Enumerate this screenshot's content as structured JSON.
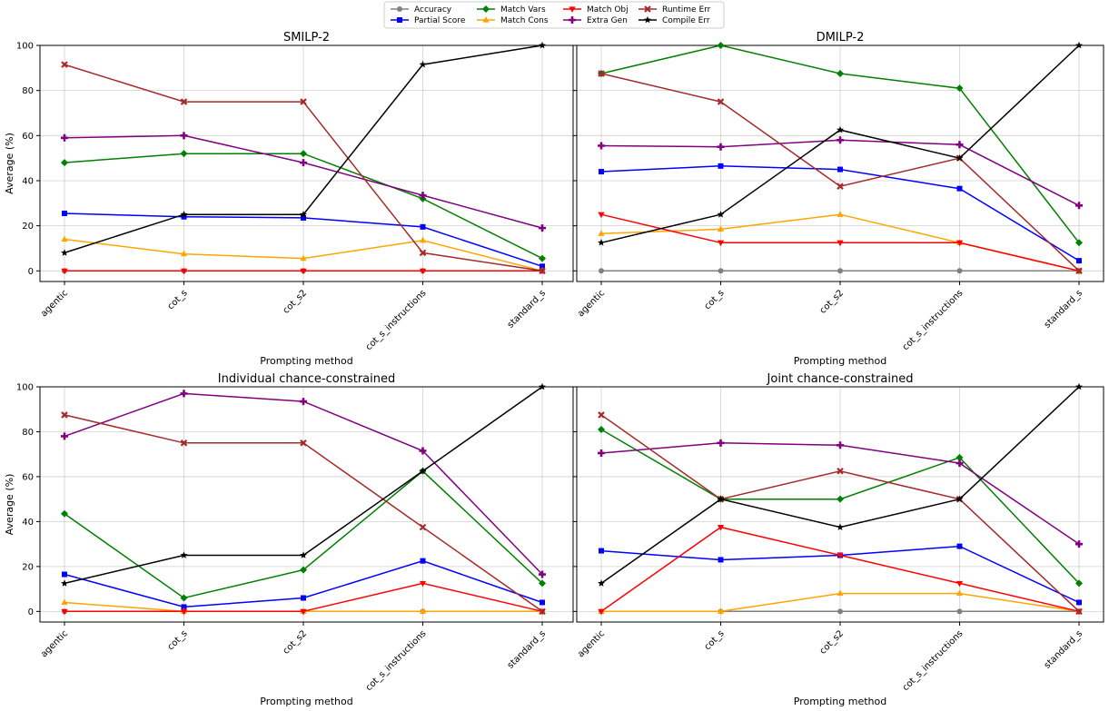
{
  "figure": {
    "xlabel": "Prompting method",
    "ylabel": "Average (%)"
  },
  "legend": {
    "placement": "top-center",
    "entries": [
      {
        "name": "Accuracy",
        "color": "#808080",
        "marker": "circle"
      },
      {
        "name": "Partial Score",
        "color": "#0000ff",
        "marker": "square"
      },
      {
        "name": "Match Vars",
        "color": "#008000",
        "marker": "diamond"
      },
      {
        "name": "Match Cons",
        "color": "#ffa500",
        "marker": "triangle-up"
      },
      {
        "name": "Match Obj",
        "color": "#ff0000",
        "marker": "triangle-down"
      },
      {
        "name": "Extra Gen",
        "color": "#800080",
        "marker": "plus"
      },
      {
        "name": "Runtime Err",
        "color": "#a52a2a",
        "marker": "x"
      },
      {
        "name": "Compile Err",
        "color": "#000000",
        "marker": "star"
      }
    ]
  },
  "chart_data": [
    {
      "type": "line",
      "title": "SMILP-2",
      "xlabel": "Prompting method",
      "ylabel": "Average (%)",
      "ylim": [
        0,
        100
      ],
      "yticks": [
        "0",
        "20",
        "40",
        "60",
        "80",
        "100"
      ],
      "grid": true,
      "categories": [
        "agentic",
        "cot_s",
        "cot_s2",
        "cot_s_instructions",
        "standard_s"
      ],
      "series": [
        {
          "name": "Accuracy",
          "values": [
            0,
            0,
            0,
            0,
            0
          ]
        },
        {
          "name": "Partial Score",
          "values": [
            25.5,
            24,
            23.5,
            19.5,
            2
          ]
        },
        {
          "name": "Match Vars",
          "values": [
            48,
            52,
            52,
            32,
            5.5
          ]
        },
        {
          "name": "Match Cons",
          "values": [
            14,
            7.5,
            5.5,
            13.5,
            0
          ]
        },
        {
          "name": "Match Obj",
          "values": [
            0,
            0,
            0,
            0,
            0
          ]
        },
        {
          "name": "Extra Gen",
          "values": [
            59,
            60,
            48,
            33.5,
            19
          ]
        },
        {
          "name": "Runtime Err",
          "values": [
            91.5,
            75,
            75,
            8,
            0
          ]
        },
        {
          "name": "Compile Err",
          "values": [
            8,
            25,
            25,
            91.5,
            100
          ]
        }
      ]
    },
    {
      "type": "line",
      "title": "DMILP-2",
      "xlabel": "Prompting method",
      "ylabel": "",
      "ylim": [
        0,
        100
      ],
      "yticks": [],
      "grid": true,
      "categories": [
        "agentic",
        "cot_s",
        "cot_s2",
        "cot_s_instructions",
        "standard_s"
      ],
      "series": [
        {
          "name": "Accuracy",
          "values": [
            0,
            0,
            0,
            0,
            0
          ]
        },
        {
          "name": "Partial Score",
          "values": [
            44,
            46.5,
            45,
            36.5,
            4.5
          ]
        },
        {
          "name": "Match Vars",
          "values": [
            87.5,
            100,
            87.5,
            81,
            12.5
          ]
        },
        {
          "name": "Match Cons",
          "values": [
            16.5,
            18.5,
            25,
            12.5,
            0
          ]
        },
        {
          "name": "Match Obj",
          "values": [
            25,
            12.5,
            12.5,
            12.5,
            0
          ]
        },
        {
          "name": "Extra Gen",
          "values": [
            55.5,
            55,
            58,
            56,
            29
          ]
        },
        {
          "name": "Runtime Err",
          "values": [
            87.5,
            75,
            37.5,
            50,
            0
          ]
        },
        {
          "name": "Compile Err",
          "values": [
            12.5,
            25,
            62.5,
            50,
            100
          ]
        }
      ]
    },
    {
      "type": "line",
      "title": "Individual chance-constrained",
      "xlabel": "Prompting method",
      "ylabel": "Average (%)",
      "ylim": [
        0,
        100
      ],
      "yticks": [
        "0",
        "20",
        "40",
        "60",
        "80",
        "100"
      ],
      "grid": true,
      "categories": [
        "agentic",
        "cot_s",
        "cot_s2",
        "cot_s_instructions",
        "standard_s"
      ],
      "series": [
        {
          "name": "Accuracy",
          "values": [
            0,
            0,
            0,
            0,
            0
          ]
        },
        {
          "name": "Partial Score",
          "values": [
            16.5,
            2,
            6,
            22.5,
            4
          ]
        },
        {
          "name": "Match Vars",
          "values": [
            43.5,
            6,
            18.5,
            62.5,
            12.5
          ]
        },
        {
          "name": "Match Cons",
          "values": [
            4,
            0,
            0,
            0,
            0
          ]
        },
        {
          "name": "Match Obj",
          "values": [
            0,
            0,
            0,
            12.5,
            0
          ]
        },
        {
          "name": "Extra Gen",
          "values": [
            78,
            97,
            93.5,
            71.5,
            16.5
          ]
        },
        {
          "name": "Runtime Err",
          "values": [
            87.5,
            75,
            75,
            37.5,
            0
          ]
        },
        {
          "name": "Compile Err",
          "values": [
            12.5,
            25,
            25,
            62.5,
            100
          ]
        }
      ]
    },
    {
      "type": "line",
      "title": "Joint chance-constrained",
      "xlabel": "Prompting method",
      "ylabel": "",
      "ylim": [
        0,
        100
      ],
      "yticks": [],
      "grid": true,
      "categories": [
        "agentic",
        "cot_s",
        "cot_s2",
        "cot_s_instructions",
        "standard_s"
      ],
      "series": [
        {
          "name": "Accuracy",
          "values": [
            0,
            0,
            0,
            0,
            0
          ]
        },
        {
          "name": "Partial Score",
          "values": [
            27,
            23,
            25,
            29,
            4
          ]
        },
        {
          "name": "Match Vars",
          "values": [
            81,
            50,
            50,
            68.5,
            12.5
          ]
        },
        {
          "name": "Match Cons",
          "values": [
            0,
            0,
            8,
            8,
            0
          ]
        },
        {
          "name": "Match Obj",
          "values": [
            0,
            37.5,
            25,
            12.5,
            0
          ]
        },
        {
          "name": "Extra Gen",
          "values": [
            70.5,
            75,
            74,
            66,
            30
          ]
        },
        {
          "name": "Runtime Err",
          "values": [
            87.5,
            50,
            62.5,
            50,
            0
          ]
        },
        {
          "name": "Compile Err",
          "values": [
            12.5,
            50,
            37.5,
            50,
            100
          ]
        }
      ]
    }
  ]
}
